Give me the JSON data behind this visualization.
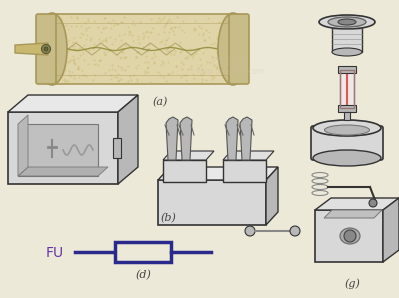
{
  "background_color": "#ede9d8",
  "fuse_symbol_color": "#2a2a8c",
  "label_color": "#6633aa",
  "fu_text": "FU",
  "label_a": "(a)",
  "label_b": "(b)",
  "label_d": "(d)",
  "label_g": "(g)",
  "symbol_line_color": "#2a2a8c",
  "symbol_box_color": "#2a2a8c",
  "gray_light": "#d8d8d8",
  "gray_mid": "#b8b8b8",
  "gray_dark": "#888888",
  "tan_light": "#e0d5a8",
  "tan_mid": "#c8bc88",
  "tan_dark": "#a89858",
  "line_color": "#333333"
}
